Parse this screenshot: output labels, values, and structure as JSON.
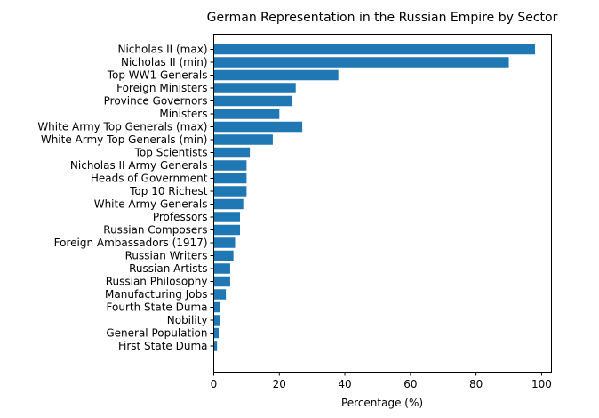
{
  "chart_data": {
    "type": "bar",
    "orientation": "horizontal",
    "title": "German Representation in the Russian Empire by Sector",
    "xlabel": "Percentage (%)",
    "ylabel": "",
    "xlim": [
      0,
      103
    ],
    "xticks": [
      0,
      20,
      40,
      60,
      80,
      100
    ],
    "grid": false,
    "bar_color": "#1f77b4",
    "categories": [
      "Nicholas II (max)",
      "Nicholas II (min)",
      "Top WW1 Generals",
      "Foreign Ministers",
      "Province Governors",
      "Ministers",
      "White Army Top Generals (max)",
      "White Army Top Generals (min)",
      "Top Scientists",
      "Nicholas II Army Generals",
      "Heads of Government",
      "Top 10 Richest",
      "White Army Generals",
      "Professors",
      "Russian Composers",
      "Foreign Ambassadors (1917)",
      "Russian Writers",
      "Russian Artists",
      "Russian Philosophy",
      "Manufacturing Jobs",
      "Fourth State Duma",
      "Nobility",
      "General Population",
      "First State Duma"
    ],
    "values": [
      98,
      90,
      38,
      25,
      24,
      20,
      27,
      18,
      11,
      10,
      10,
      10,
      9,
      8,
      8,
      6.5,
      6,
      5,
      5,
      3.7,
      2,
      2,
      1.5,
      1
    ]
  }
}
